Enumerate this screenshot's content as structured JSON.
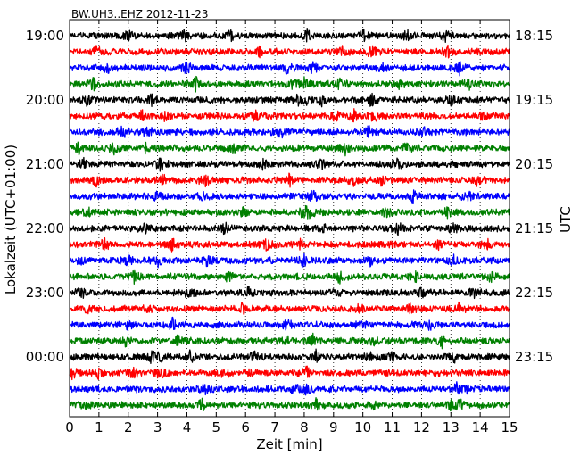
{
  "chart_data": {
    "type": "line",
    "title": "BW.UH3..EHZ 2012-11-23",
    "xlabel": "Zeit  [min]",
    "ylabel_left": "Lokalzeit (UTC+01:00)",
    "ylabel_right": "UTC",
    "xlim": [
      0,
      15
    ],
    "x_ticks": [
      "0",
      "1",
      "2",
      "3",
      "4",
      "5",
      "6",
      "7",
      "8",
      "9",
      "10",
      "11",
      "12",
      "13",
      "14",
      "15"
    ],
    "x_grid": "dotted",
    "trace_minutes": 15,
    "left_ticks": [
      {
        "trace": 0,
        "label": "19:00"
      },
      {
        "trace": 4,
        "label": "20:00"
      },
      {
        "trace": 8,
        "label": "21:00"
      },
      {
        "trace": 12,
        "label": "22:00"
      },
      {
        "trace": 16,
        "label": "23:00"
      },
      {
        "trace": 20,
        "label": "00:00"
      }
    ],
    "right_ticks": [
      {
        "trace": 0,
        "label": "18:15"
      },
      {
        "trace": 4,
        "label": "19:15"
      },
      {
        "trace": 8,
        "label": "20:15"
      },
      {
        "trace": 12,
        "label": "21:15"
      },
      {
        "trace": 16,
        "label": "22:15"
      },
      {
        "trace": 20,
        "label": "23:15"
      }
    ],
    "trace_colors": [
      "#000000",
      "#ff0000",
      "#0000ff",
      "#008000"
    ],
    "series": [
      {
        "trace": 0,
        "color": "#000000",
        "spikes": [
          2.0,
          3.9,
          5.5,
          8.1,
          10.0,
          11.5,
          12.8
        ]
      },
      {
        "trace": 1,
        "color": "#ff0000",
        "spikes": [
          0.9,
          6.5,
          9.3,
          10.3,
          12.9
        ]
      },
      {
        "trace": 2,
        "color": "#0000ff",
        "spikes": [
          1.3,
          4.0,
          7.4,
          8.3,
          10.7,
          13.3
        ]
      },
      {
        "trace": 3,
        "color": "#008000",
        "spikes": [
          0.8,
          4.3,
          7.6,
          8.0,
          9.2,
          11.2,
          13.6
        ]
      },
      {
        "trace": 4,
        "color": "#000000",
        "spikes": [
          0.6,
          2.8,
          7.8,
          8.1,
          8.6,
          10.3,
          13.0
        ]
      },
      {
        "trace": 5,
        "color": "#ff0000",
        "spikes": [
          2.5,
          3.3,
          6.3,
          9.1,
          9.7,
          10.4,
          14.1
        ]
      },
      {
        "trace": 6,
        "color": "#0000ff",
        "spikes": [
          1.8,
          2.7,
          7.2,
          10.2,
          12.1
        ]
      },
      {
        "trace": 7,
        "color": "#008000",
        "spikes": [
          0.3,
          1.5,
          2.6,
          5.6,
          9.4,
          11.5
        ]
      },
      {
        "trace": 8,
        "color": "#000000",
        "spikes": [
          0.5,
          3.1,
          6.6,
          8.6,
          11.2
        ]
      },
      {
        "trace": 9,
        "color": "#ff0000",
        "spikes": [
          0.9,
          3.2,
          4.6,
          7.5,
          9.7,
          10.6,
          13.9
        ]
      },
      {
        "trace": 10,
        "color": "#0000ff",
        "spikes": [
          3.0,
          4.5,
          8.3,
          11.7,
          13.6
        ]
      },
      {
        "trace": 11,
        "color": "#008000",
        "spikes": [
          0.6,
          5.9,
          8.0,
          8.2,
          10.8,
          12.9
        ]
      },
      {
        "trace": 12,
        "color": "#000000",
        "spikes": [
          2.6,
          5.3,
          8.6,
          11.2,
          13.1
        ]
      },
      {
        "trace": 13,
        "color": "#ff0000",
        "spikes": [
          1.2,
          3.5,
          6.7,
          7.9,
          12.6,
          14.2
        ]
      },
      {
        "trace": 14,
        "color": "#0000ff",
        "spikes": [
          0.4,
          2.0,
          3.0,
          4.7,
          8.0,
          10.3,
          13.1
        ]
      },
      {
        "trace": 15,
        "color": "#008000",
        "spikes": [
          2.2,
          5.4,
          9.2,
          11.8,
          14.4
        ]
      },
      {
        "trace": 16,
        "color": "#000000",
        "spikes": [
          0.4,
          4.0,
          6.1,
          9.1,
          12.0,
          13.8
        ]
      },
      {
        "trace": 17,
        "color": "#ff0000",
        "spikes": [
          0.6,
          2.7,
          5.9,
          9.9,
          11.6,
          13.3
        ]
      },
      {
        "trace": 18,
        "color": "#0000ff",
        "spikes": [
          2.0,
          3.5,
          7.4,
          10.0,
          12.3
        ]
      },
      {
        "trace": 19,
        "color": "#008000",
        "spikes": [
          1.9,
          3.7,
          7.5,
          8.3,
          10.4,
          12.7
        ]
      },
      {
        "trace": 20,
        "color": "#000000",
        "spikes": [
          2.8,
          3.1,
          4.1,
          6.3,
          8.4,
          10.3,
          11.0,
          13.1
        ]
      },
      {
        "trace": 21,
        "color": "#ff0000",
        "spikes": [
          0.1,
          1.0,
          2.2,
          3.1,
          5.3,
          6.2,
          8.1
        ]
      },
      {
        "trace": 22,
        "color": "#0000ff",
        "spikes": [
          4.6,
          7.7,
          8.1,
          13.2,
          13.6
        ]
      },
      {
        "trace": 23,
        "color": "#008000",
        "spikes": [
          0.6,
          4.5,
          8.4,
          10.4,
          13.0,
          13.3
        ]
      }
    ]
  }
}
